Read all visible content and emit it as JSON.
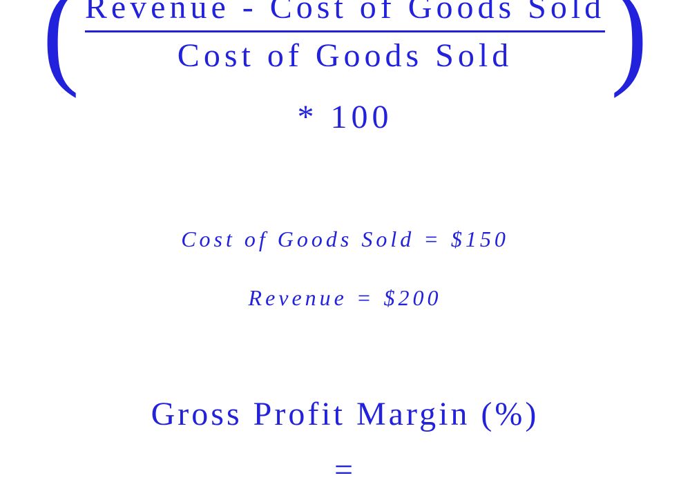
{
  "formula": {
    "numerator": "Revenue - Cost of Goods Sold",
    "denominator": "Cost of Goods Sold",
    "multiplier": "* 100"
  },
  "values": {
    "cogs": "Cost of Goods Sold = $150",
    "revenue": "Revenue = $200"
  },
  "result": {
    "title": "Gross Profit Margin (%)",
    "equals": "="
  },
  "colors": {
    "text": "#2222dd",
    "background": "#ffffff",
    "line": "#2222dd"
  },
  "typography": {
    "formula_fontsize": 48,
    "values_fontsize": 32,
    "result_fontsize": 48,
    "font_family": "Times New Roman, serif",
    "values_style": "italic",
    "letter_spacing_main": 6,
    "letter_spacing_values": 5
  }
}
